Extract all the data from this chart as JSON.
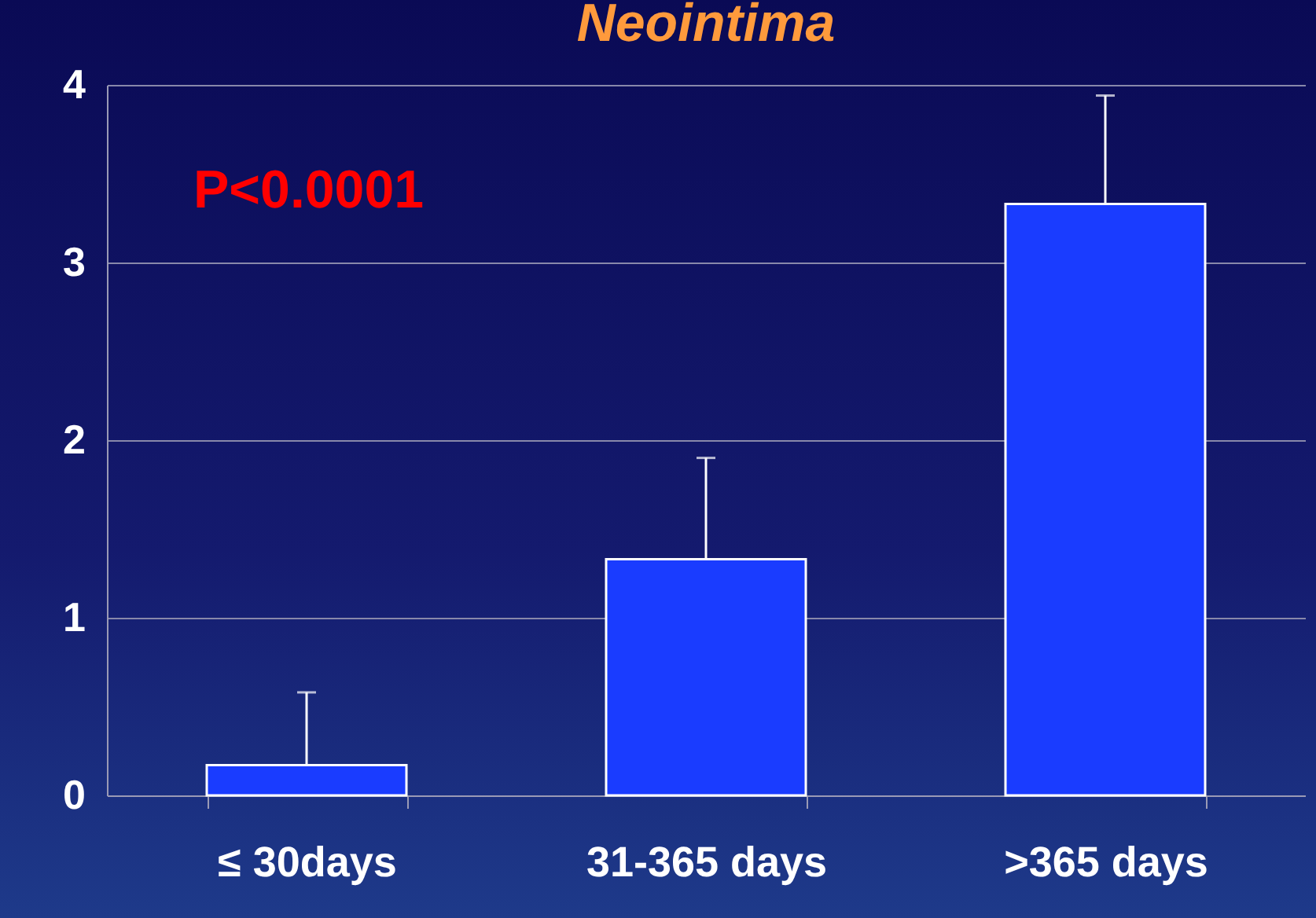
{
  "chart_data": {
    "type": "bar",
    "title": "Neointima",
    "annotations": [
      "P<0.0001"
    ],
    "categories": [
      "≤ 30days",
      "31-365 days",
      ">365 days"
    ],
    "values": [
      0.17,
      1.33,
      3.33
    ],
    "errors": [
      [
        0.17,
        0.58
      ],
      [
        1.33,
        1.9
      ],
      [
        3.33,
        3.94
      ]
    ],
    "color": "#1a3cff",
    "ylim": [
      0,
      4
    ],
    "yticks": [
      0,
      1,
      2,
      3,
      4
    ],
    "grid": "y"
  }
}
